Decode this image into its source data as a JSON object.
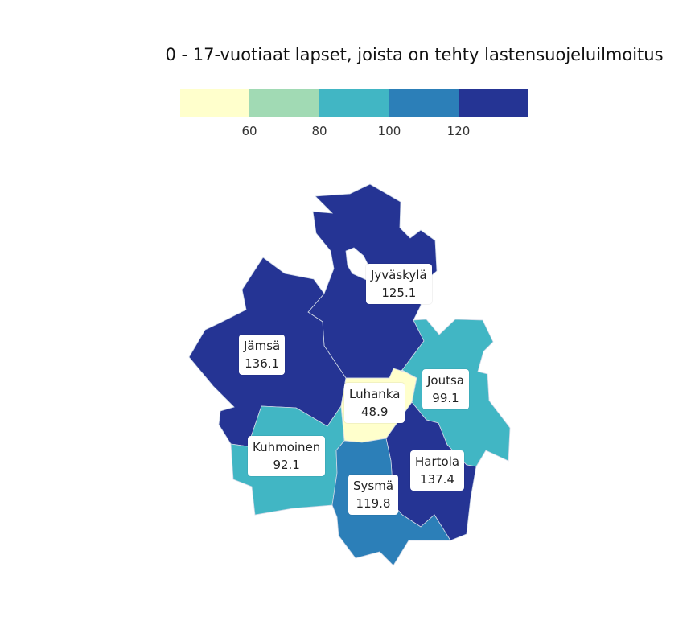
{
  "title": "0 - 17-vuotiaat lapset, joista on tehty lastensuojeluilmoitus",
  "legend": {
    "colors": [
      "#ffffcc",
      "#a1dab4",
      "#41b6c4",
      "#2c7fb8",
      "#253494"
    ],
    "ticks": [
      "60",
      "80",
      "100",
      "120"
    ]
  },
  "regions": [
    {
      "name": "Jyväskylä",
      "value": "125.1",
      "color": "#253494"
    },
    {
      "name": "Jämsä",
      "value": "136.1",
      "color": "#253494"
    },
    {
      "name": "Joutsa",
      "value": "99.1",
      "color": "#41b6c4"
    },
    {
      "name": "Luhanka",
      "value": "48.9",
      "color": "#ffffcc"
    },
    {
      "name": "Kuhmoinen",
      "value": "92.1",
      "color": "#41b6c4"
    },
    {
      "name": "Hartola",
      "value": "137.4",
      "color": "#253494"
    },
    {
      "name": "Sysmä",
      "value": "119.8",
      "color": "#2c7fb8"
    }
  ]
}
